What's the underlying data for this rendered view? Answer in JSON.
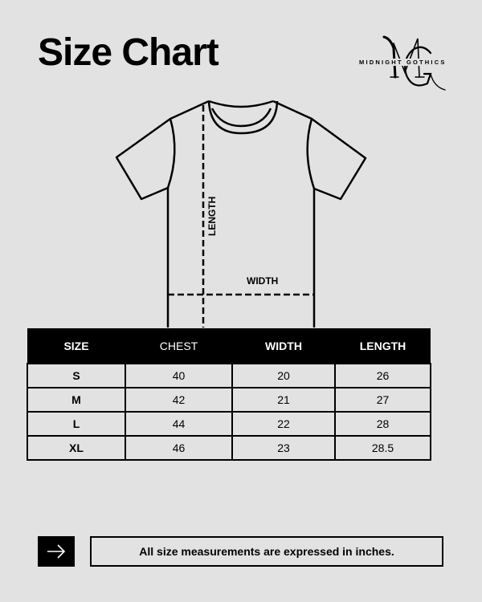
{
  "title": "Size Chart",
  "logo": {
    "monogram": "MG",
    "brand": "MIDNIGHT GOTHICS"
  },
  "diagram": {
    "length_label": "LENGTH",
    "width_label": "WIDTH"
  },
  "table": {
    "headers": [
      "SIZE",
      "CHEST",
      "WIDTH",
      "LENGTH"
    ],
    "rows": [
      [
        "S",
        "40",
        "20",
        "26"
      ],
      [
        "M",
        "42",
        "21",
        "27"
      ],
      [
        "L",
        "44",
        "22",
        "28"
      ],
      [
        "XL",
        "46",
        "23",
        "28.5"
      ]
    ]
  },
  "footer": {
    "icon": "arrow-right-icon",
    "note": "All size measurements are expressed in inches."
  }
}
